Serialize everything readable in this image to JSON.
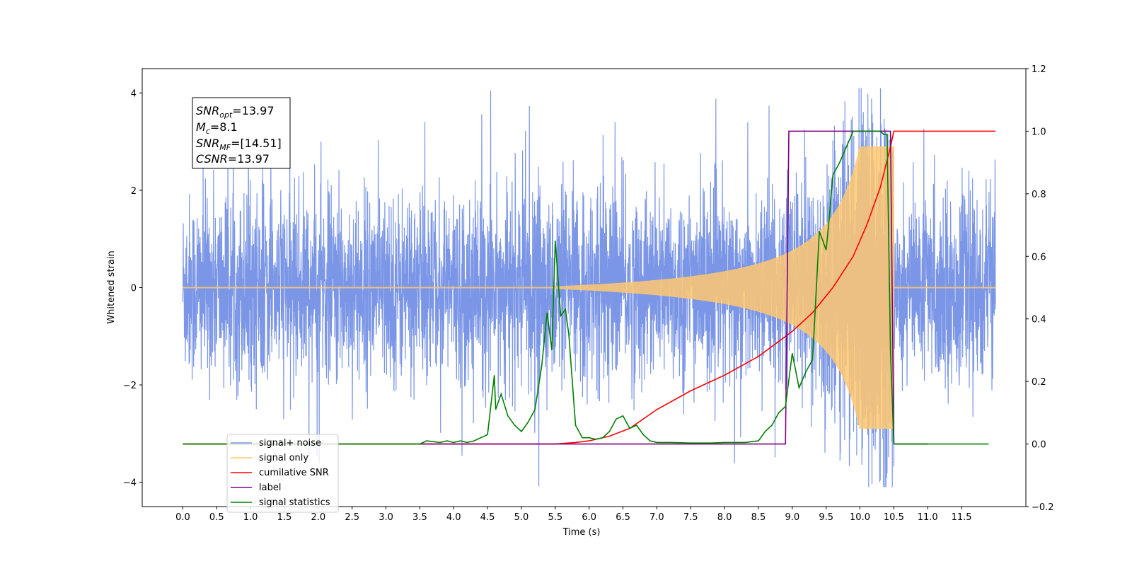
{
  "chart_data": {
    "type": "line",
    "xlabel": "Time (s)",
    "ylabel": "Whitened strain",
    "xlim": [
      -0.6,
      12.45
    ],
    "ylim": [
      -4.5,
      4.5
    ],
    "y2lim": [
      -0.2,
      1.2
    ],
    "x_ticks": [
      "0.0",
      "0.5",
      "1.0",
      "1.5",
      "2.0",
      "2.5",
      "3.0",
      "3.5",
      "4.0",
      "4.5",
      "5.0",
      "5.5",
      "6.0",
      "6.5",
      "7.0",
      "7.5",
      "8.0",
      "8.5",
      "9.0",
      "9.5",
      "10.0",
      "10.5",
      "11.0",
      "11.5"
    ],
    "y_ticks": [
      "4",
      "2",
      "0",
      "−2",
      "−4"
    ],
    "y2_ticks": [
      "1.2",
      "1.0",
      "0.8",
      "0.6",
      "0.4",
      "0.2",
      "0.0",
      "−0.2"
    ],
    "grid": false,
    "legend_position": "lower-left",
    "annotation": {
      "line1": {
        "base": "SNR",
        "sub": "opt",
        "value": "=13.97"
      },
      "line2": {
        "base": "M",
        "sub": "c",
        "value": "=8.1"
      },
      "line3": {
        "base": "SNR",
        "sub": "MF",
        "value": "=[14.51]"
      },
      "line4": {
        "base": "CSNR",
        "sub": "",
        "value": "=13.97"
      }
    },
    "series": [
      {
        "name": "signal+ noise",
        "color": "#7b96e6",
        "axis": "left",
        "x_range": [
          0.0,
          12.0
        ],
        "noise_std": 1.0,
        "notes": "noise with embedded chirp, spikes up to ~4.1 and down to ~-4.1"
      },
      {
        "name": "signal only",
        "color": "#ffc870",
        "axis": "left",
        "x_range": [
          0.0,
          12.0
        ],
        "chirp_end": 10.5,
        "peak_amplitude": 2.9
      },
      {
        "name": "cumilative SNR",
        "color": "#ff0000",
        "axis": "right",
        "x": [
          0,
          5.5,
          5.8,
          6.0,
          6.3,
          6.6,
          7.0,
          7.5,
          8.0,
          8.5,
          9.0,
          9.3,
          9.6,
          9.9,
          10.1,
          10.3,
          10.45,
          10.5,
          12.0
        ],
        "y": [
          0,
          0,
          0.005,
          0.01,
          0.025,
          0.05,
          0.11,
          0.17,
          0.22,
          0.28,
          0.36,
          0.42,
          0.5,
          0.6,
          0.7,
          0.82,
          0.95,
          1.0,
          1.0
        ]
      },
      {
        "name": "label",
        "color": "#800080",
        "axis": "right",
        "x": [
          3.5,
          8.9,
          8.95,
          10.45,
          10.5,
          11.0
        ],
        "y": [
          0,
          0,
          1.0,
          1.0,
          0,
          0
        ]
      },
      {
        "name": "signal statistics",
        "color": "#008000",
        "axis": "right",
        "x": [
          0,
          3.5,
          3.6,
          3.8,
          3.9,
          4.0,
          4.1,
          4.2,
          4.3,
          4.5,
          4.6,
          4.62,
          4.7,
          4.8,
          4.9,
          5.0,
          5.1,
          5.2,
          5.3,
          5.38,
          5.45,
          5.5,
          5.58,
          5.65,
          5.7,
          5.8,
          5.9,
          6.0,
          6.1,
          6.2,
          6.3,
          6.4,
          6.5,
          6.6,
          6.7,
          6.8,
          6.9,
          7.0,
          7.2,
          7.5,
          7.8,
          8.0,
          8.3,
          8.5,
          8.6,
          8.7,
          8.8,
          8.9,
          9.0,
          9.1,
          9.2,
          9.3,
          9.4,
          9.5,
          9.55,
          9.6,
          9.7,
          9.8,
          9.9,
          10.0,
          10.1,
          10.2,
          10.3,
          10.35,
          10.4,
          10.45,
          10.5,
          11.9
        ],
        "y": [
          0,
          0,
          0.01,
          0.005,
          0.01,
          0.005,
          0.01,
          0.005,
          0.01,
          0.03,
          0.22,
          0.11,
          0.16,
          0.09,
          0.06,
          0.04,
          0.07,
          0.11,
          0.25,
          0.42,
          0.3,
          0.65,
          0.41,
          0.43,
          0.35,
          0.06,
          0.02,
          0.02,
          0.015,
          0.02,
          0.04,
          0.08,
          0.09,
          0.05,
          0.06,
          0.03,
          0.01,
          0.005,
          0.005,
          0.003,
          0.003,
          0.005,
          0.005,
          0.01,
          0.04,
          0.06,
          0.1,
          0.12,
          0.29,
          0.18,
          0.23,
          0.27,
          0.68,
          0.62,
          0.73,
          0.86,
          0.9,
          0.95,
          1.0,
          1.0,
          1.0,
          1.0,
          1.0,
          0.99,
          0.99,
          0.3,
          0,
          0
        ]
      }
    ]
  }
}
